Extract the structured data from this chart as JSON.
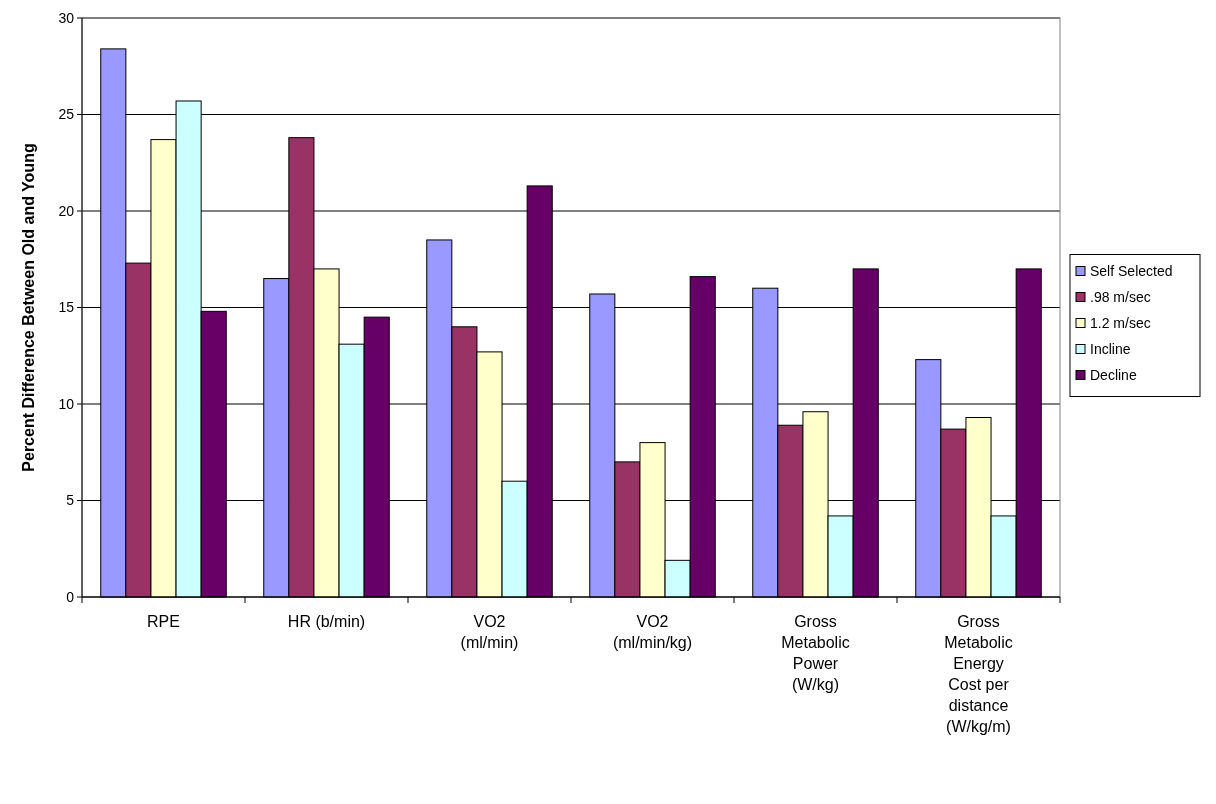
{
  "chart_data": {
    "type": "bar",
    "ylabel": "Percent Difference Between Old and Young",
    "categories": [
      "RPE",
      "HR (b/min)",
      "VO2 (ml/min)",
      "VO2 (ml/min/kg)",
      "Gross Metabolic Power (W/kg)",
      "Gross Metabolic Energy Cost per distance (W/kg/m)"
    ],
    "series": [
      {
        "name": "Self Selected",
        "color": "#9999ff",
        "values": [
          28.4,
          16.5,
          18.5,
          15.7,
          16.0,
          12.3
        ]
      },
      {
        "name": ".98 m/sec",
        "color": "#993366",
        "values": [
          17.3,
          23.8,
          14.0,
          7.0,
          8.9,
          8.7
        ]
      },
      {
        "name": "1.2 m/sec",
        "color": "#ffffcc",
        "values": [
          23.7,
          17.0,
          12.7,
          8.0,
          9.6,
          9.3
        ]
      },
      {
        "name": "Incline",
        "color": "#ccffff",
        "values": [
          25.7,
          13.1,
          6.0,
          1.9,
          4.2,
          4.2
        ]
      },
      {
        "name": "Decline",
        "color": "#660066",
        "values": [
          14.8,
          14.5,
          21.3,
          16.6,
          17.0,
          17.0
        ]
      }
    ],
    "ylim": [
      0,
      30
    ],
    "yticks": [
      0,
      5,
      10,
      15,
      20,
      25,
      30
    ],
    "grid": "y",
    "legend": "right"
  }
}
